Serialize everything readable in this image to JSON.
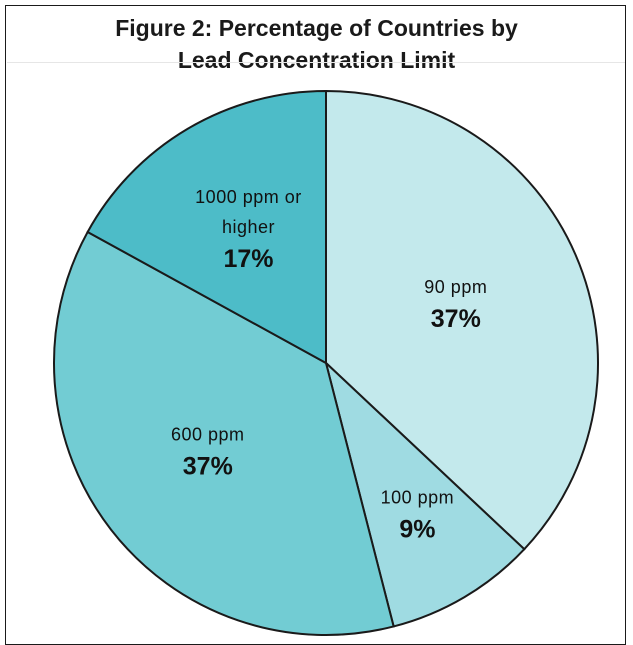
{
  "chart_data": {
    "type": "pie",
    "title_lines": [
      "Figure 2: Percentage of Countries by",
      "Lead Concentration Limit"
    ],
    "slices": [
      {
        "label_lines": [
          "90 ppm"
        ],
        "value": 37,
        "value_label": "37%",
        "color": "#c3e9ec"
      },
      {
        "label_lines": [
          "100 ppm"
        ],
        "value": 9,
        "value_label": "9%",
        "color": "#9fdbe2"
      },
      {
        "label_lines": [
          "600 ppm"
        ],
        "value": 37,
        "value_label": "37%",
        "color": "#72ccd3"
      },
      {
        "label_lines": [
          "1000 ppm or",
          "higher"
        ],
        "value": 17,
        "value_label": "17%",
        "color": "#4dbcc8"
      }
    ],
    "start": "12 o'clock",
    "direction": "clockwise",
    "legend": "none"
  }
}
